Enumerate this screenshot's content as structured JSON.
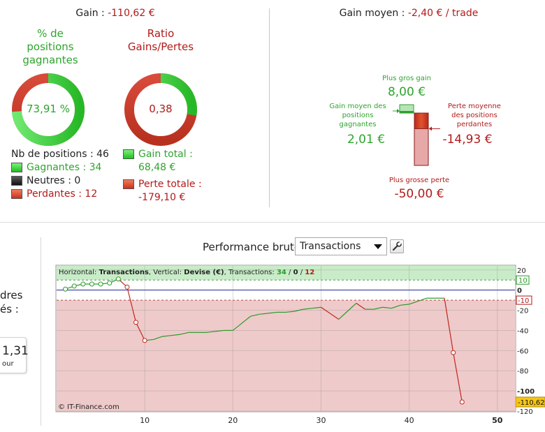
{
  "gain": {
    "label": "Gain : ",
    "value": "-110,62 €"
  },
  "gain_moyen": {
    "label": "Gain moyen : ",
    "value": "-2,40 € / trade"
  },
  "win_ratio": {
    "title_l1": "% de",
    "title_l2": "positions",
    "title_l3": "gagnantes",
    "value": "73,91 %",
    "fraction": 0.7391
  },
  "gl_ratio": {
    "title_l1": "Ratio",
    "title_l2": "Gains/Pertes",
    "value": "0,38",
    "fraction": 0.2766
  },
  "positions": {
    "total": "Nb de positions : 46",
    "gagnantes": "Gagnantes : 34",
    "neutres": "Neutres : 0",
    "perdantes": "Perdantes : 12"
  },
  "totals": {
    "gain_label": "Gain total :",
    "gain_value": "68,48 €",
    "perte_label": "Perte totale :",
    "perte_value": "-179,10 €"
  },
  "stats": {
    "plus_gros_gain_label": "Plus gros gain",
    "plus_gros_gain_value": "8,00 €",
    "gain_moyen_l1": "Gain moyen des",
    "gain_moyen_l2": "positions",
    "gain_moyen_l3": "gagnantes",
    "gain_moyen_value": "2,01 €",
    "perte_moyenne_l1": "Perte moyenne",
    "perte_moyenne_l2": "des positions",
    "perte_moyenne_l3": "perdantes",
    "perte_moyenne_value": "-14,93 €",
    "plus_grosse_perte_label": "Plus grosse perte",
    "plus_grosse_perte_value": "-50,00 €",
    "max_gain": 8.0,
    "avg_gain": 2.01,
    "avg_loss": -14.93,
    "max_loss": -50.0
  },
  "performance": {
    "title": "Performance brute",
    "select_value": "Transactions",
    "wrench_icon": "wrench-icon"
  },
  "side_panel": {
    "text_l1": "dres",
    "text_l2": "és :",
    "card_value": "1,31",
    "card_sub": "our"
  },
  "chart_data": {
    "type": "line",
    "info": {
      "horizontal_label": "Horizontal: ",
      "horizontal_value": "Transactions",
      "vertical_label": ", Vertical: ",
      "vertical_value": "Devise (€)",
      "transactions_label": ", Transactions: ",
      "t_win": "34",
      "sep1": " / ",
      "t_neutral": "0",
      "sep2": " / ",
      "t_loss": "12"
    },
    "copyright": "© IT-Finance.com",
    "xlim": [
      0,
      52
    ],
    "ylim": [
      -120,
      24
    ],
    "x_ticks": [
      10,
      20,
      30,
      40,
      50
    ],
    "y_ticks": [
      20,
      0,
      -20,
      -40,
      -60,
      -80,
      -100,
      -120
    ],
    "bold_y_ticks": [
      0,
      -100
    ],
    "bold_x_ticks": [
      50
    ],
    "threshold_high": 10,
    "threshold_low": -10,
    "threshold_high_label": "10",
    "threshold_low_label": "-10",
    "last_value_label": "-110,62",
    "series": [
      {
        "x": [
          1,
          2,
          3,
          4,
          5,
          6,
          7,
          8,
          9,
          10,
          11,
          12,
          13,
          14,
          15,
          16,
          17,
          18,
          19,
          20,
          21,
          22,
          23,
          24,
          25,
          26,
          27,
          28,
          29,
          30,
          31,
          32,
          33,
          34,
          35,
          36,
          37,
          38,
          39,
          40,
          41,
          42,
          43,
          44,
          45,
          46
        ],
        "y": [
          1,
          4,
          6,
          6,
          6,
          7,
          11,
          3,
          -32,
          -50,
          -49,
          -46,
          -45,
          -44,
          -42,
          -42,
          -42,
          -41,
          -40,
          -40,
          -33,
          -26,
          -24,
          -23,
          -22,
          -22,
          -21,
          -19,
          -18,
          -17,
          -23,
          -29,
          -21,
          -13,
          -19,
          -19,
          -17,
          -18,
          -15,
          -14,
          -11,
          -8,
          -8,
          -8,
          -62,
          -111
        ],
        "markers": [
          1,
          2,
          3,
          4,
          5,
          6,
          7,
          8,
          9,
          10,
          45,
          46
        ]
      }
    ]
  }
}
